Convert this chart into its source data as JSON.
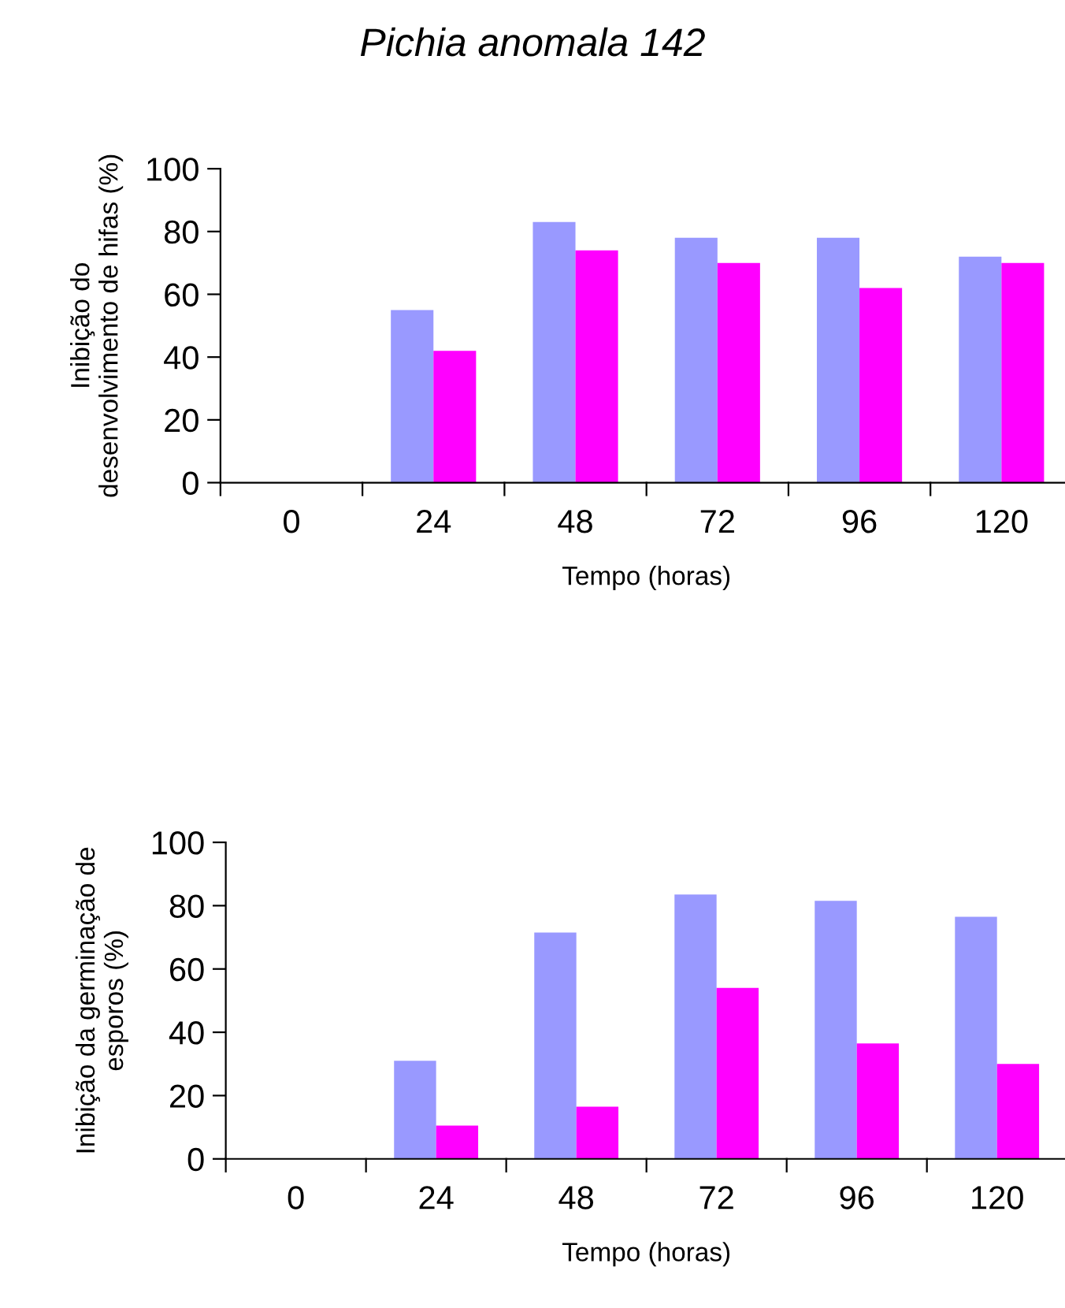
{
  "chart_data": [
    {
      "type": "bar",
      "title": "Pichia anomala 142",
      "xlabel": "Tempo (horas)",
      "ylabel": "Inibição do\ndesenvolvimento de hifas (%)",
      "categories": [
        "0",
        "24",
        "48",
        "72",
        "96",
        "120"
      ],
      "series": [
        {
          "color": "#9999ff",
          "values": [
            0,
            55,
            83,
            78,
            78,
            72
          ]
        },
        {
          "color": "#ff00ff",
          "values": [
            0,
            42,
            74,
            70,
            62,
            70
          ]
        }
      ],
      "ylim": [
        0,
        100
      ],
      "yticks": [
        0,
        20,
        40,
        60,
        80,
        100
      ],
      "grid": false,
      "legend": false
    },
    {
      "type": "bar",
      "xlabel": "Tempo (horas)",
      "ylabel": "Inibição da germinação de\nesporos (%)",
      "categories": [
        "0",
        "24",
        "48",
        "72",
        "96",
        "120"
      ],
      "series": [
        {
          "color": "#9999ff",
          "values": [
            0,
            31,
            71.5,
            83.5,
            81.5,
            76.5
          ]
        },
        {
          "color": "#ff00ff",
          "values": [
            0,
            10.5,
            16.5,
            54,
            36.5,
            30
          ]
        }
      ],
      "ylim": [
        0,
        100
      ],
      "yticks": [
        0,
        20,
        40,
        60,
        80,
        100
      ],
      "grid": false,
      "legend": false
    }
  ]
}
